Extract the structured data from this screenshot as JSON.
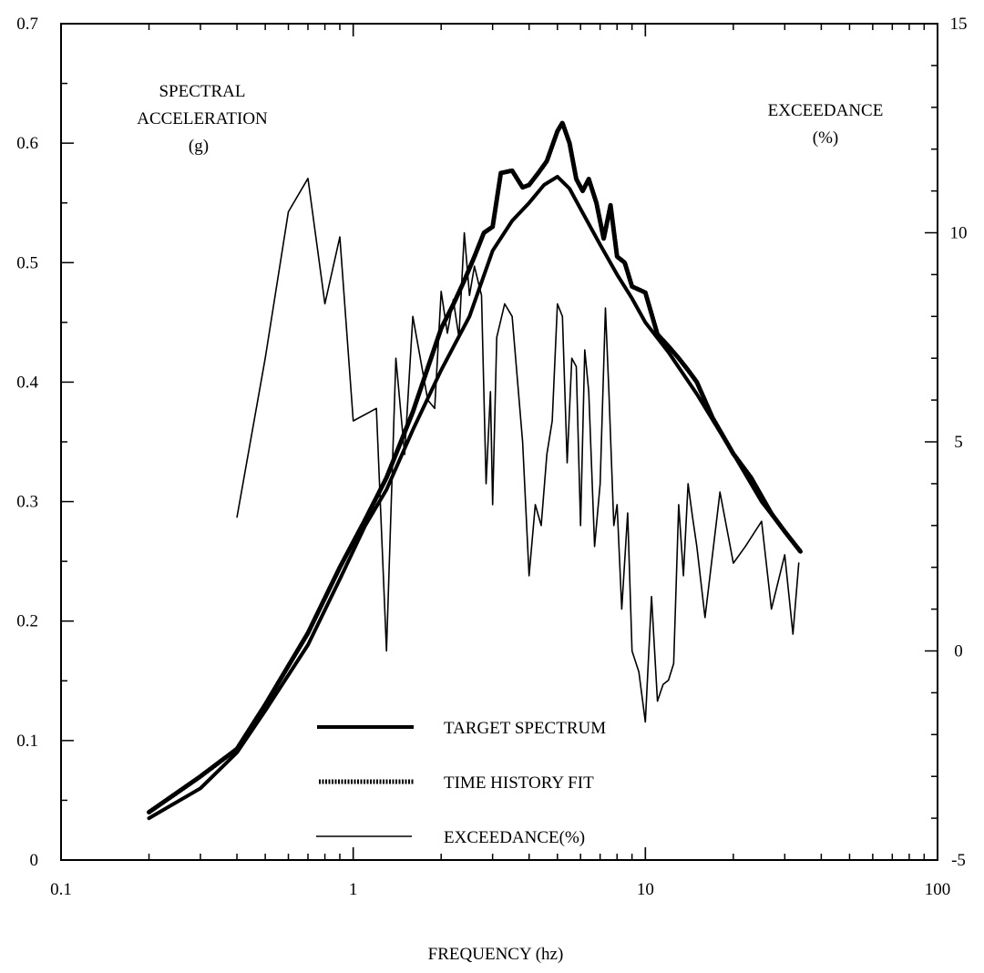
{
  "chart_data": {
    "type": "line",
    "xlabel": "FREQUENCY (hz)",
    "x_scale": "log",
    "xlim": [
      0.1,
      100
    ],
    "x_ticks": [
      "0.1",
      "1",
      "10",
      "100"
    ],
    "y_left": {
      "label_lines": [
        "SPECTRAL",
        "ACCELERATION",
        "(g)"
      ],
      "lim": [
        0,
        0.7
      ],
      "ticks": [
        "0",
        "0.1",
        "0.2",
        "0.3",
        "0.4",
        "0.5",
        "0.6",
        "0.7"
      ]
    },
    "y_right": {
      "label_lines": [
        "EXCEEDANCE",
        "(%)"
      ],
      "lim": [
        -5,
        15
      ],
      "ticks": [
        "-5",
        "0",
        "5",
        "10",
        "15"
      ]
    },
    "grid": false,
    "legend_position": "bottom-center",
    "series": [
      {
        "name": "TARGET SPECTRUM",
        "axis": "left",
        "style": "thick",
        "x": [
          0.2,
          0.3,
          0.4,
          0.5,
          0.7,
          0.9,
          1.1,
          1.3,
          1.6,
          2.0,
          2.5,
          3.0,
          3.5,
          4.0,
          4.5,
          5.0,
          5.5,
          6.0,
          7.0,
          8.0,
          9.0,
          10.0,
          12.0,
          15.0,
          20.0,
          25.0,
          30.0,
          34.0
        ],
        "y": [
          0.035,
          0.06,
          0.09,
          0.125,
          0.18,
          0.235,
          0.28,
          0.31,
          0.36,
          0.41,
          0.455,
          0.51,
          0.535,
          0.55,
          0.565,
          0.572,
          0.562,
          0.545,
          0.515,
          0.49,
          0.47,
          0.45,
          0.425,
          0.39,
          0.34,
          0.3,
          0.275,
          0.258
        ]
      },
      {
        "name": "TIME HISTORY FIT",
        "axis": "left",
        "style": "dotted-thick",
        "x": [
          0.2,
          0.3,
          0.4,
          0.5,
          0.7,
          0.9,
          1.1,
          1.3,
          1.6,
          2.0,
          2.2,
          2.4,
          2.6,
          2.8,
          3.0,
          3.2,
          3.5,
          3.8,
          4.0,
          4.3,
          4.6,
          5.0,
          5.2,
          5.5,
          5.8,
          6.1,
          6.4,
          6.8,
          7.2,
          7.6,
          8.0,
          8.5,
          9.0,
          10.0,
          11.0,
          12.0,
          13.0,
          14.0,
          15.0,
          17.0,
          20.0,
          23.0,
          27.0,
          30.0,
          34.0
        ],
        "y": [
          0.04,
          0.07,
          0.093,
          0.13,
          0.19,
          0.245,
          0.285,
          0.32,
          0.375,
          0.445,
          0.465,
          0.485,
          0.505,
          0.525,
          0.53,
          0.575,
          0.577,
          0.563,
          0.565,
          0.575,
          0.585,
          0.61,
          0.617,
          0.6,
          0.57,
          0.56,
          0.57,
          0.55,
          0.52,
          0.548,
          0.505,
          0.5,
          0.48,
          0.475,
          0.44,
          0.43,
          0.42,
          0.41,
          0.4,
          0.37,
          0.34,
          0.32,
          0.29,
          0.275,
          0.258
        ]
      },
      {
        "name": "EXCEEDANCE(%)",
        "axis": "right",
        "style": "thin",
        "x": [
          0.4,
          0.5,
          0.6,
          0.7,
          0.8,
          0.9,
          1.0,
          1.2,
          1.3,
          1.4,
          1.5,
          1.6,
          1.8,
          1.9,
          2.0,
          2.1,
          2.2,
          2.3,
          2.4,
          2.5,
          2.6,
          2.75,
          2.85,
          2.95,
          3.0,
          3.1,
          3.3,
          3.5,
          3.8,
          4.0,
          4.2,
          4.4,
          4.6,
          4.8,
          5.0,
          5.2,
          5.4,
          5.6,
          5.8,
          6.0,
          6.2,
          6.4,
          6.7,
          7.0,
          7.3,
          7.5,
          7.8,
          8.0,
          8.3,
          8.7,
          9.0,
          9.5,
          10.0,
          10.5,
          11.0,
          11.5,
          12.0,
          12.5,
          13.0,
          13.5,
          14.0,
          14.5,
          15.0,
          16.0,
          18.0,
          20.0,
          22.0,
          25.0,
          27.0,
          30.0,
          32.0,
          33.5
        ],
        "y": [
          3.2,
          7.0,
          10.5,
          11.3,
          8.3,
          9.9,
          5.5,
          5.8,
          0.0,
          7.0,
          4.7,
          8.0,
          6.0,
          5.8,
          8.6,
          7.6,
          8.4,
          7.5,
          10.0,
          8.5,
          9.2,
          8.5,
          4.0,
          6.2,
          3.5,
          7.5,
          8.3,
          8.0,
          5.0,
          1.8,
          3.5,
          3.0,
          4.7,
          5.5,
          8.3,
          8.0,
          4.5,
          7.0,
          6.8,
          3.0,
          7.2,
          6.2,
          2.5,
          4.0,
          8.2,
          6.2,
          3.0,
          3.5,
          1.0,
          3.3,
          0.0,
          -0.5,
          -1.7,
          1.3,
          -1.2,
          -0.8,
          -0.7,
          -0.3,
          3.5,
          1.8,
          4.0,
          3.2,
          2.5,
          0.8,
          3.8,
          2.1,
          2.5,
          3.1,
          1.0,
          2.3,
          0.4,
          2.1
        ]
      }
    ]
  }
}
